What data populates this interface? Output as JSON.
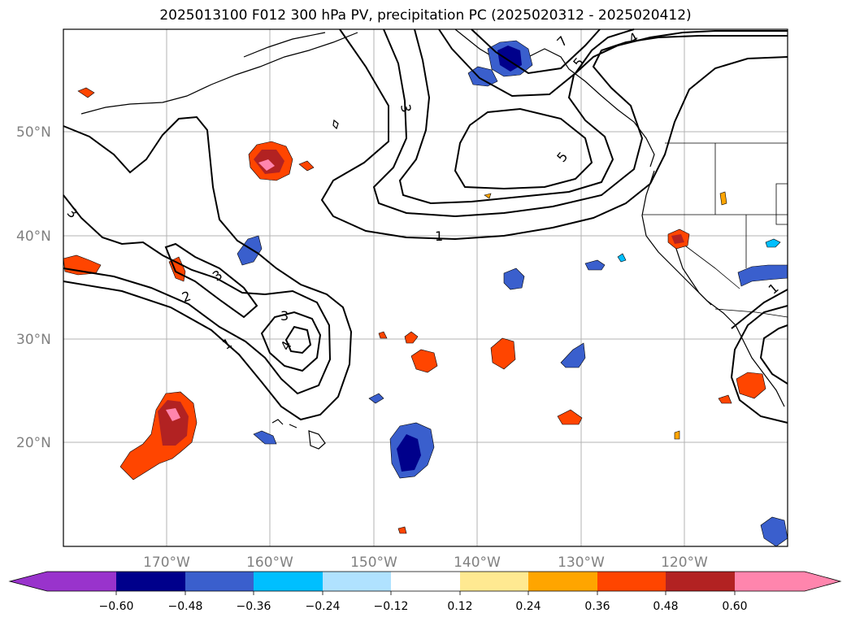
{
  "title": "2025013100 F012 300 hPa PV, precipitation PC (2025020312 - 2025020412)",
  "map": {
    "lat_labels": [
      "50°N",
      "40°N",
      "30°N",
      "20°N"
    ],
    "lon_labels": [
      "170°W",
      "160°W",
      "150°W",
      "140°W",
      "130°W",
      "120°W"
    ],
    "contour_labels": [
      "1",
      "1",
      "2",
      "3",
      "3",
      "3",
      "3",
      "4",
      "4",
      "5",
      "5",
      "7",
      "1"
    ]
  },
  "colorbar": {
    "ticks": [
      "−0.60",
      "−0.48",
      "−0.36",
      "−0.24",
      "−0.12",
      "0.12",
      "0.24",
      "0.36",
      "0.48",
      "0.60"
    ],
    "colors": [
      "#9933cc",
      "#00008b",
      "#3a5fcd",
      "#00bfff",
      "#b0e2ff",
      "#ffffff",
      "#ffe991",
      "#ffa500",
      "#ff4500",
      "#b22222",
      "#ff85ad"
    ]
  }
}
